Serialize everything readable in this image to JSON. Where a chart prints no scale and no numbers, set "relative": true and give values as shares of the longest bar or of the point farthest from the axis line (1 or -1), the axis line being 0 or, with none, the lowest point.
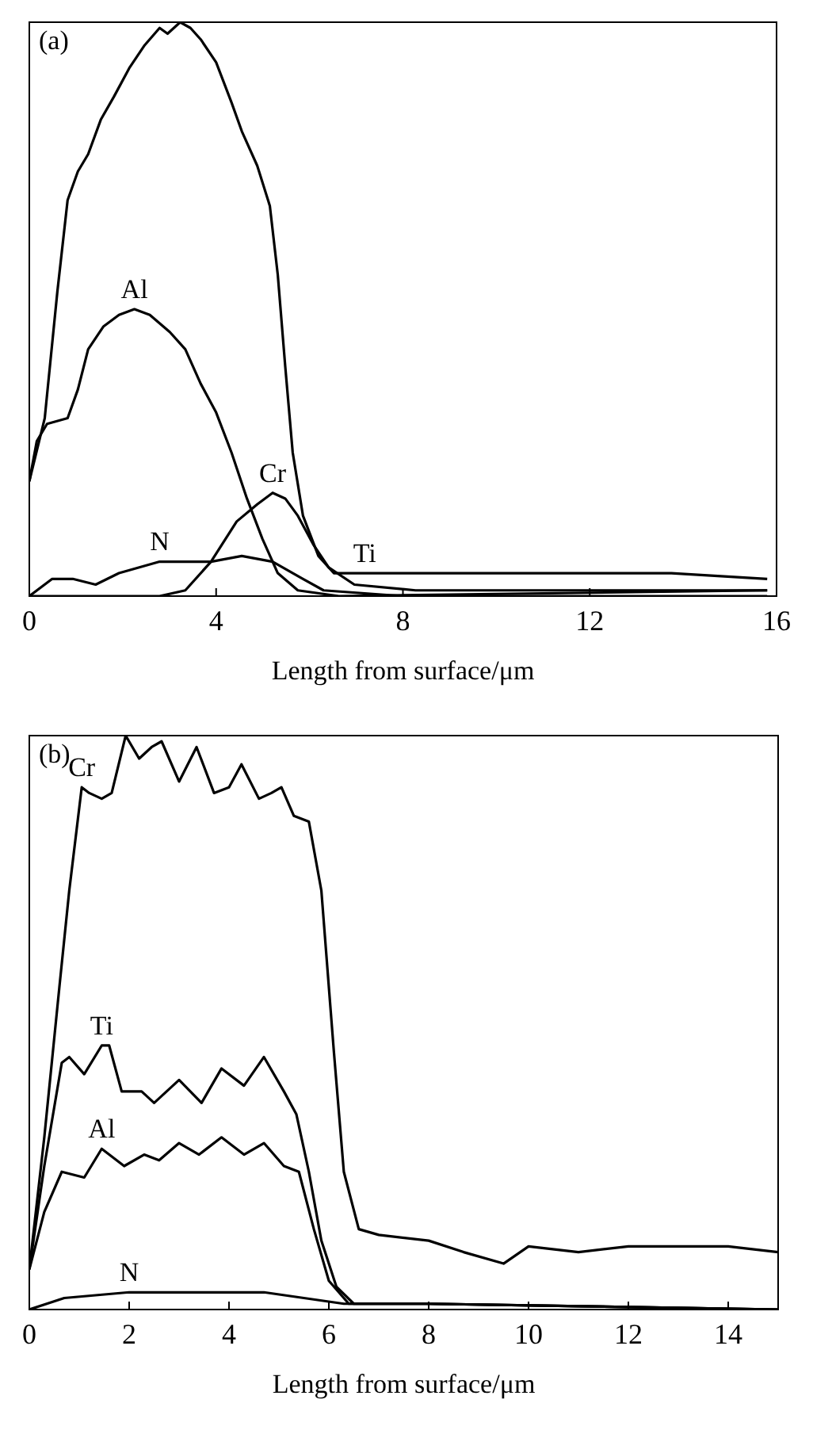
{
  "chart_data": [
    {
      "type": "line",
      "relative": true,
      "xlabel": "Length from surface/μm",
      "xlim": [
        0,
        16
      ],
      "xticks": [
        0,
        4,
        8,
        12,
        16
      ],
      "annotations": [
        "(a)"
      ],
      "legend": false,
      "grid": false,
      "marker": "none",
      "line_style": "solid",
      "series": [
        {
          "name": "Ti",
          "color": "#000000",
          "x": [
            0,
            0.33,
            0.6,
            0.82,
            1.04,
            1.26,
            1.53,
            1.81,
            2.14,
            2.47,
            2.79,
            2.96,
            3.23,
            3.45,
            3.67,
            4.0,
            4.33,
            4.55,
            4.88,
            5.15,
            5.32,
            5.48,
            5.64,
            5.86,
            6.19,
            6.52,
            7.18,
            10.5,
            13.75,
            15.8
          ],
          "values": [
            0.2,
            0.31,
            0.53,
            0.69,
            0.74,
            0.77,
            0.83,
            0.87,
            0.92,
            0.96,
            0.99,
            0.98,
            1.0,
            0.99,
            0.97,
            0.93,
            0.86,
            0.81,
            0.75,
            0.68,
            0.56,
            0.4,
            0.25,
            0.14,
            0.07,
            0.04,
            0.04,
            0.04,
            0.04,
            0.03
          ]
        },
        {
          "name": "Al",
          "color": "#000000",
          "x": [
            0,
            0.16,
            0.38,
            0.82,
            1.04,
            1.26,
            1.59,
            1.92,
            2.25,
            2.58,
            3.01,
            3.34,
            3.67,
            4.0,
            4.33,
            4.66,
            4.99,
            5.32,
            5.75,
            6.63,
            15.8
          ],
          "values": [
            0.2,
            0.27,
            0.3,
            0.31,
            0.36,
            0.43,
            0.47,
            0.49,
            0.5,
            0.49,
            0.46,
            0.43,
            0.37,
            0.32,
            0.25,
            0.17,
            0.1,
            0.04,
            0.01,
            0.0,
            0.01
          ]
        },
        {
          "name": "Cr",
          "color": "#000000",
          "x": [
            0,
            2.79,
            3.34,
            3.89,
            4.44,
            4.88,
            5.21,
            5.48,
            5.75,
            6.08,
            6.41,
            6.96,
            8.27,
            15.8
          ],
          "values": [
            0,
            0,
            0.01,
            0.06,
            0.13,
            0.16,
            0.18,
            0.17,
            0.14,
            0.09,
            0.05,
            0.02,
            0.01,
            0.01
          ]
        },
        {
          "name": "N",
          "color": "#000000",
          "x": [
            0,
            0.49,
            0.93,
            1.42,
            1.92,
            2.79,
            3.89,
            4.55,
            5.21,
            5.86,
            6.3,
            8.0,
            15.8
          ],
          "values": [
            0,
            0.03,
            0.03,
            0.02,
            0.04,
            0.06,
            0.06,
            0.07,
            0.06,
            0.03,
            0.01,
            0,
            0
          ]
        }
      ]
    },
    {
      "type": "line",
      "relative": true,
      "xlabel": "Length from surface/μm",
      "xlim": [
        0,
        15
      ],
      "xticks": [
        0,
        2,
        4,
        6,
        8,
        10,
        12,
        14
      ],
      "annotations": [
        "(b)"
      ],
      "legend": false,
      "grid": false,
      "marker": "none",
      "line_style": "solid",
      "series": [
        {
          "name": "Cr",
          "color": "#000000",
          "x": [
            0,
            0.3,
            0.6,
            0.8,
            1.05,
            1.2,
            1.45,
            1.65,
            1.93,
            2.2,
            2.45,
            2.65,
            3.0,
            3.35,
            3.7,
            4.0,
            4.25,
            4.6,
            4.85,
            5.05,
            5.3,
            5.6,
            5.85,
            6.1,
            6.3,
            6.6,
            7.0,
            8.0,
            8.7,
            9.5,
            10.0,
            11.0,
            12.0,
            13.0,
            14.0,
            15.0
          ],
          "values": [
            0.07,
            0.3,
            0.56,
            0.73,
            0.91,
            0.9,
            0.89,
            0.9,
            1.0,
            0.96,
            0.98,
            0.99,
            0.92,
            0.98,
            0.9,
            0.91,
            0.95,
            0.89,
            0.9,
            0.91,
            0.86,
            0.85,
            0.73,
            0.45,
            0.24,
            0.14,
            0.13,
            0.12,
            0.1,
            0.08,
            0.11,
            0.1,
            0.11,
            0.11,
            0.11,
            0.1
          ]
        },
        {
          "name": "Ti",
          "color": "#000000",
          "x": [
            0,
            0.3,
            0.65,
            0.8,
            1.1,
            1.45,
            1.6,
            1.85,
            2.25,
            2.5,
            3.0,
            3.45,
            3.85,
            4.3,
            4.7,
            5.1,
            5.35,
            5.6,
            5.85,
            6.15,
            6.5,
            8.0,
            15.0
          ],
          "values": [
            0.07,
            0.25,
            0.43,
            0.44,
            0.41,
            0.46,
            0.46,
            0.38,
            0.38,
            0.36,
            0.4,
            0.36,
            0.42,
            0.39,
            0.44,
            0.38,
            0.34,
            0.24,
            0.12,
            0.04,
            0.01,
            0.01,
            0
          ]
        },
        {
          "name": "Al",
          "color": "#000000",
          "x": [
            0,
            0.3,
            0.65,
            1.1,
            1.45,
            1.9,
            2.3,
            2.6,
            3.0,
            3.4,
            3.85,
            4.3,
            4.7,
            5.1,
            5.4,
            5.7,
            6.0,
            6.4,
            8.0,
            15.0
          ],
          "values": [
            0.07,
            0.17,
            0.24,
            0.23,
            0.28,
            0.25,
            0.27,
            0.26,
            0.29,
            0.27,
            0.3,
            0.27,
            0.29,
            0.25,
            0.24,
            0.14,
            0.05,
            0.01,
            0.01,
            0
          ]
        },
        {
          "name": "N",
          "color": "#000000",
          "x": [
            0,
            0.7,
            2.0,
            4.7,
            5.5,
            6.3,
            8.0,
            15.0
          ],
          "values": [
            0,
            0.02,
            0.03,
            0.03,
            0.02,
            0.01,
            0.01,
            0
          ]
        }
      ]
    }
  ]
}
